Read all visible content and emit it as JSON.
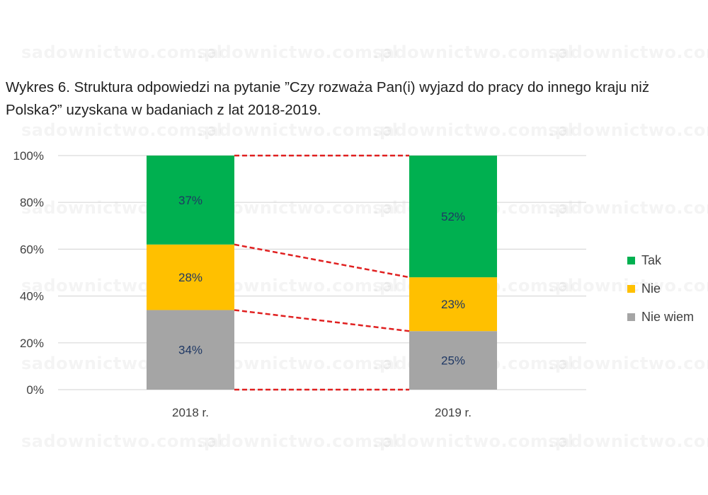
{
  "watermark": "sadownictwo.com.pl",
  "title": "Wykres 6. Struktura odpowiedzi na pytanie ”Czy rozważa Pan(i) wyjazd do pracy do innego kraju niż Polska?” uzyskana w badaniach z lat 2018-2019.",
  "chart_data": {
    "type": "bar",
    "stacked": true,
    "categories": [
      "2018 r.",
      "2019 r."
    ],
    "series": [
      {
        "name": "Nie wiem",
        "values": [
          34,
          25
        ],
        "labels": [
          "34%",
          "25%"
        ],
        "color": "#a5a5a5"
      },
      {
        "name": "Nie",
        "values": [
          28,
          23
        ],
        "labels": [
          "28%",
          "23%"
        ],
        "color": "#ffc000"
      },
      {
        "name": "Tak",
        "values": [
          37,
          52
        ],
        "labels": [
          "37%",
          "52%"
        ],
        "color": "#00b050"
      }
    ],
    "ylim": [
      0,
      100
    ],
    "yticks": [
      "0%",
      "20%",
      "40%",
      "60%",
      "80%",
      "100%"
    ],
    "grid": true,
    "legend_position": "right",
    "legend": [
      {
        "name": "Tak",
        "color": "#00b050"
      },
      {
        "name": "Nie",
        "color": "#ffc000"
      },
      {
        "name": "Nie wiem",
        "color": "#a5a5a5"
      }
    ],
    "connector_color": "#e02020"
  }
}
